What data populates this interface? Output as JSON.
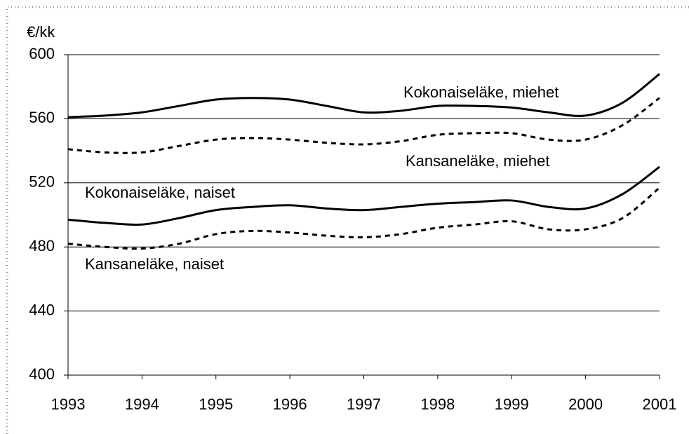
{
  "chart_data": {
    "type": "line",
    "ylabel": "€/kk",
    "x": [
      1993,
      1993.5,
      1994,
      1994.5,
      1995,
      1995.5,
      1996,
      1996.5,
      1997,
      1997.5,
      1998,
      1998.5,
      1999,
      1999.5,
      2000,
      2000.5,
      2001
    ],
    "series": [
      {
        "name": "Kokonaiseläke, miehet",
        "color": "#000000",
        "dashed": false,
        "values": [
          561,
          562,
          564,
          568,
          572,
          573,
          572,
          568,
          564,
          565,
          568,
          568,
          567,
          564,
          562,
          570,
          588
        ]
      },
      {
        "name": "Kansaneläke, miehet",
        "color": "#000000",
        "dashed": true,
        "values": [
          541,
          539,
          539,
          543,
          547,
          548,
          547,
          545,
          544,
          546,
          550,
          551,
          551,
          547,
          547,
          556,
          573
        ]
      },
      {
        "name": "Kokonaiseläke, naiset",
        "color": "#000000",
        "dashed": false,
        "values": [
          497,
          495,
          494,
          498,
          503,
          505,
          506,
          504,
          503,
          505,
          507,
          508,
          509,
          505,
          504,
          513,
          530
        ]
      },
      {
        "name": "Kansaneläke, naiset",
        "color": "#000000",
        "dashed": true,
        "values": [
          482,
          480,
          479,
          482,
          488,
          490,
          489,
          487,
          486,
          488,
          492,
          494,
          496,
          491,
          491,
          498,
          517
        ]
      }
    ],
    "xlim": [
      1993,
      2001
    ],
    "xticks": [
      1993,
      1994,
      1995,
      1996,
      1997,
      1998,
      1999,
      2000,
      2001
    ],
    "ylim": [
      400,
      600
    ],
    "yticks": [
      400,
      440,
      480,
      520,
      560,
      600
    ],
    "grid": true
  }
}
